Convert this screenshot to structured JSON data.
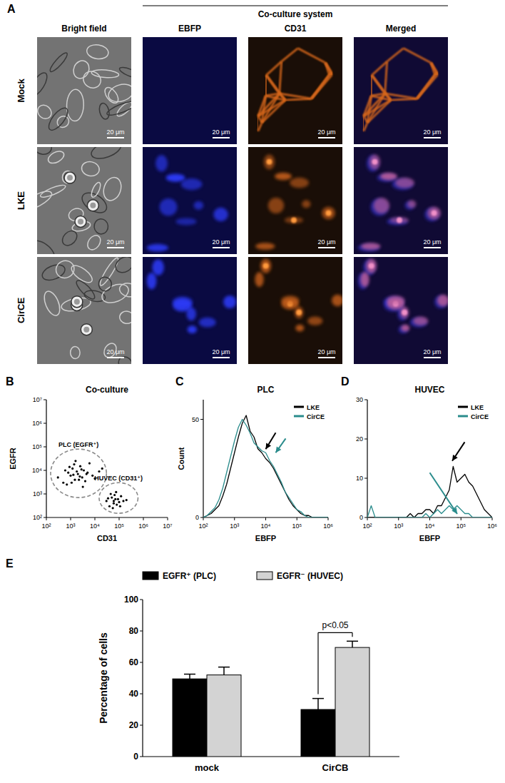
{
  "figure_a": {
    "panel_label": "A",
    "header": "Co-culture system",
    "columns": [
      "Bright field",
      "EBFP",
      "CD31",
      "Merged"
    ],
    "rows": [
      "Mock",
      "LKE",
      "CirCE"
    ],
    "scale_bar": "20 μm"
  },
  "chart_data": [
    {
      "type": "scatter",
      "panel_label": "B",
      "title": "Co-culture",
      "x_label": "CD31",
      "y_label": "EGFR",
      "log": true,
      "xlim": [
        100,
        10000000
      ],
      "ylim": [
        100,
        10000000
      ],
      "xticks": [
        {
          "value": 100,
          "label": "10²"
        },
        {
          "value": 1000,
          "label": "10³"
        },
        {
          "value": 10000,
          "label": "10⁴"
        },
        {
          "value": 100000,
          "label": "10⁵"
        },
        {
          "value": 1000000,
          "label": "10⁶"
        },
        {
          "value": 10000000,
          "label": "10⁷"
        }
      ],
      "yticks": [
        {
          "value": 100,
          "label": "10²"
        },
        {
          "value": 1000,
          "label": "10³"
        },
        {
          "value": 10000,
          "label": "10⁴"
        },
        {
          "value": 100000,
          "label": "10⁵"
        },
        {
          "value": 1000000,
          "label": "10⁶"
        },
        {
          "value": 10000000,
          "label": "10⁷"
        }
      ],
      "series": [
        {
          "color": "#000000",
          "x": [
            300,
            500,
            800,
            1000,
            1200,
            1500,
            1800,
            2000,
            2500,
            3000,
            3500,
            4000,
            5000,
            6000,
            8000,
            10000,
            15000,
            20000,
            700,
            900,
            1300,
            1600,
            2200,
            2800,
            4500,
            600,
            1100,
            1400,
            2400,
            3200
          ],
          "values": [
            5000,
            3000,
            8000,
            6000,
            12000,
            4000,
            9000,
            7000,
            15000,
            5000,
            10000,
            3500,
            8000,
            20000,
            6000,
            4500,
            9000,
            12000,
            2500,
            14000,
            6500,
            25000,
            4000,
            11000,
            7000,
            10000,
            3000,
            18000,
            5500,
            2000
          ]
        },
        {
          "color": "#000000",
          "x": [
            30000,
            40000,
            50000,
            60000,
            70000,
            80000,
            100000,
            120000,
            150000,
            45000,
            55000,
            65000,
            90000,
            35000,
            75000,
            110000,
            200000,
            60000
          ],
          "values": [
            500,
            300,
            700,
            400,
            600,
            350,
            450,
            800,
            500,
            1000,
            250,
            900,
            600,
            650,
            1200,
            300,
            550,
            500
          ]
        }
      ],
      "gates": [
        {
          "label": "PLC (EGFR⁺)",
          "x": [
            150,
            30000
          ],
          "y": [
            700,
            80000
          ]
        },
        {
          "label": "HUVEC (CD31⁺)",
          "x": [
            15000,
            600000
          ],
          "y": [
            150,
            3000
          ]
        }
      ]
    },
    {
      "type": "line",
      "panel_label": "C",
      "title": "PLC",
      "x_label": "EBFP",
      "y_label": "Count",
      "log": "x",
      "xlim": [
        100,
        1000000
      ],
      "ylim": [
        0,
        60
      ],
      "xticks": [
        {
          "value": 100,
          "label": "10²"
        },
        {
          "value": 1000,
          "label": "10³"
        },
        {
          "value": 10000,
          "label": "10⁴"
        },
        {
          "value": 100000,
          "label": "10⁵"
        },
        {
          "value": 1000000,
          "label": "10⁶"
        }
      ],
      "yticks": [
        0,
        50
      ],
      "legend": "top-right",
      "x": [
        100,
        133,
        178,
        237,
        316,
        422,
        562,
        750,
        1000,
        1334,
        1778,
        2371,
        3162,
        4217,
        5623,
        7499,
        10000,
        13335,
        17783,
        23714,
        31623,
        42170,
        56234,
        74989,
        100000,
        133352,
        177828,
        237137,
        316228,
        421697,
        562341,
        749894,
        1000000
      ],
      "series": [
        {
          "name": "LKE",
          "color": "#000000",
          "values": [
            0,
            1,
            2,
            4,
            6,
            11,
            17,
            25,
            33,
            41,
            48,
            52,
            44,
            41,
            35,
            33,
            30,
            28,
            25,
            21,
            17,
            13,
            9,
            6,
            4,
            2,
            1,
            1,
            0,
            0,
            0,
            0,
            0
          ]
        },
        {
          "name": "CirCE",
          "color": "#2a8c8c",
          "values": [
            0,
            1,
            3,
            5,
            9,
            15,
            23,
            31,
            39,
            46,
            50,
            47,
            43,
            38,
            36,
            34,
            33,
            29,
            26,
            22,
            18,
            13,
            10,
            7,
            4,
            3,
            1,
            0,
            0,
            0,
            0,
            0,
            0
          ]
        }
      ]
    },
    {
      "type": "line",
      "panel_label": "D",
      "title": "HUVEC",
      "x_label": "EBFP",
      "log": "x",
      "xlim": [
        100,
        1000000
      ],
      "ylim": [
        0,
        30
      ],
      "xticks": [
        {
          "value": 100,
          "label": "10²"
        },
        {
          "value": 1000,
          "label": "10³"
        },
        {
          "value": 10000,
          "label": "10⁴"
        },
        {
          "value": 100000,
          "label": "10⁵"
        },
        {
          "value": 1000000,
          "label": "10⁶"
        }
      ],
      "yticks": [
        0,
        10,
        20,
        30
      ],
      "legend": "top-right",
      "x": [
        100,
        133,
        178,
        237,
        316,
        422,
        562,
        750,
        1000,
        1334,
        1778,
        2371,
        3162,
        4217,
        5623,
        7499,
        10000,
        13335,
        17783,
        23714,
        31623,
        42170,
        56234,
        74989,
        100000,
        133352,
        177828,
        237137,
        316228,
        421697,
        562341,
        749894,
        1000000
      ],
      "series": [
        {
          "name": "LKE",
          "color": "#000000",
          "values": [
            0,
            0,
            0,
            0,
            0,
            0,
            0,
            0,
            0,
            0,
            0,
            1,
            0,
            1,
            1,
            2,
            2,
            1,
            3,
            3,
            5,
            7,
            13,
            9,
            10,
            11,
            9,
            8,
            6,
            4,
            2,
            1,
            0
          ]
        },
        {
          "name": "CirCE",
          "color": "#2a8c8c",
          "values": [
            0,
            3,
            0,
            0,
            0,
            0,
            0,
            0,
            0,
            0,
            0,
            0,
            0,
            0,
            0,
            1,
            0,
            1,
            2,
            1,
            2,
            3,
            2,
            3,
            2,
            1,
            1,
            0,
            0,
            0,
            0,
            0,
            0
          ]
        }
      ]
    },
    {
      "type": "bar",
      "panel_label": "E",
      "y_label": "Percentage of cells",
      "categories": [
        "mock",
        "CirCB"
      ],
      "ylim": [
        0,
        100
      ],
      "yticks": [
        0,
        20,
        40,
        60,
        80,
        100
      ],
      "legend": "top",
      "series": [
        {
          "name": "EGFR⁺ (PLC)",
          "color": "#000000",
          "values": [
            49.5,
            30
          ],
          "errors": [
            3,
            7
          ]
        },
        {
          "name": "EGFR⁻ (HUVEC)",
          "color": "#d3d3d3",
          "values": [
            52,
            69.5
          ],
          "errors": [
            5,
            4
          ]
        }
      ],
      "annotations": [
        "p<0.05"
      ]
    }
  ]
}
